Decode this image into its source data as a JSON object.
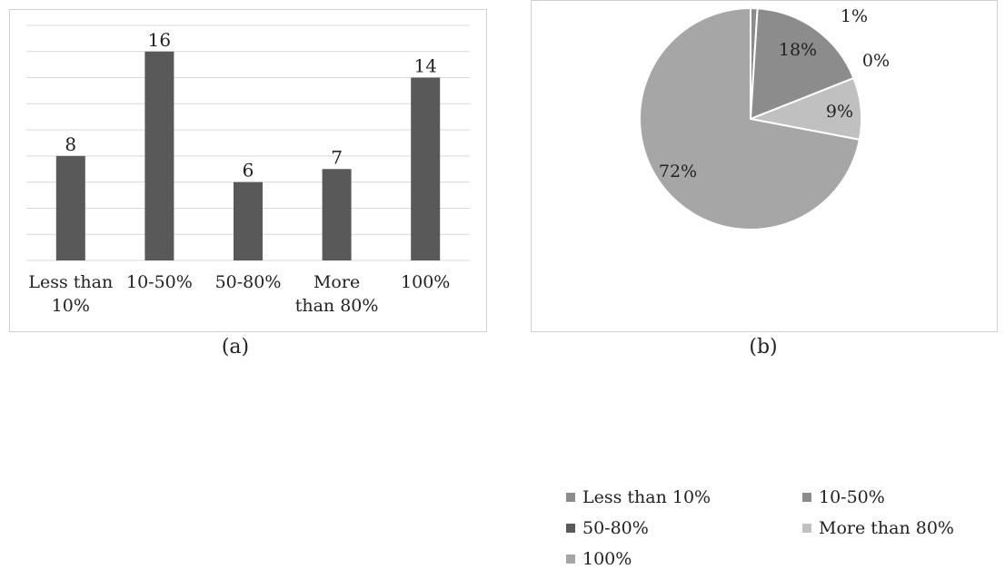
{
  "chart_data": [
    {
      "type": "bar",
      "categories": [
        "Less than 10%",
        "10-50%",
        "50-80%",
        "More than 80%",
        "100%"
      ],
      "category_lines": [
        [
          "Less than",
          "10%"
        ],
        [
          "10-50%"
        ],
        [
          "50-80%"
        ],
        [
          "More",
          "than 80%"
        ],
        [
          "100%"
        ]
      ],
      "values": [
        8,
        16,
        6,
        7,
        14
      ],
      "data_labels": [
        "8",
        "16",
        "6",
        "7",
        "14"
      ],
      "ylim": [
        0,
        18
      ],
      "grid": true,
      "bar_color": "#595959",
      "caption": "(a)"
    },
    {
      "type": "pie",
      "categories": [
        "Less than 10%",
        "10-50%",
        "50-80%",
        "More than 80%",
        "100%"
      ],
      "values": [
        1,
        18,
        0,
        9,
        72
      ],
      "data_labels": [
        "1%",
        "18%",
        "0%",
        "9%",
        "72%"
      ],
      "colors": [
        "#8c8c8c",
        "#8c8c8c",
        "#595959",
        "#c0c0c0",
        "#a6a6a6"
      ],
      "legend": "bottom",
      "caption": "(b)"
    }
  ]
}
